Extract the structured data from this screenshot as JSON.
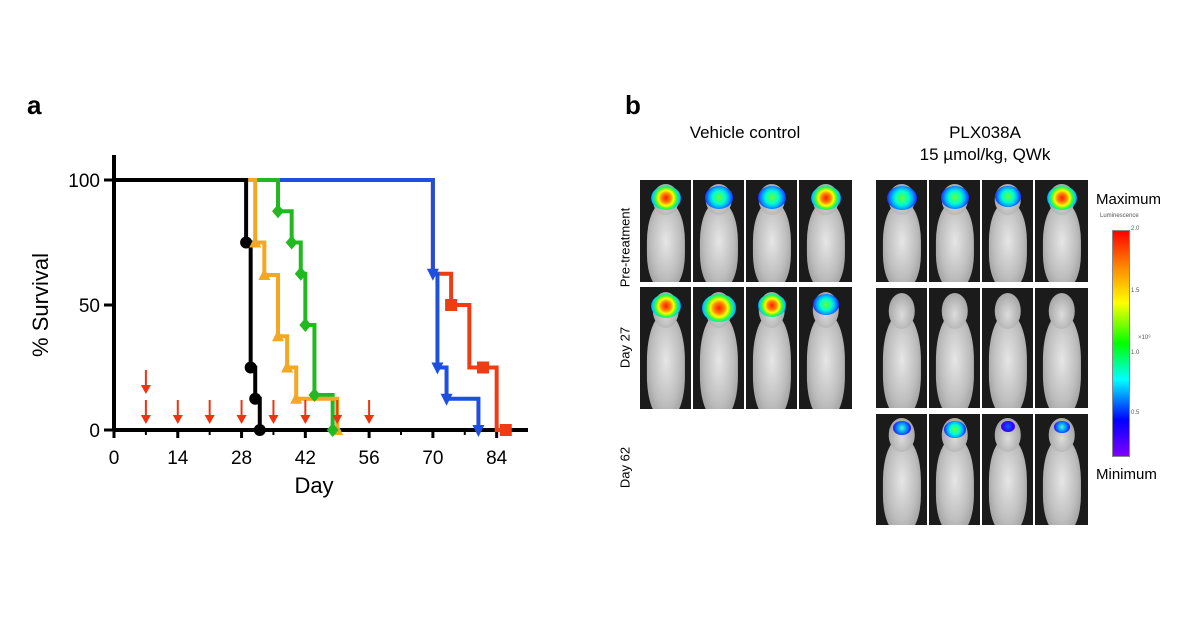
{
  "panel_a": {
    "letter": "a"
  },
  "panel_b": {
    "letter": "b",
    "groups": [
      {
        "title_line1": "Vehicle control",
        "title_line2": ""
      },
      {
        "title_line1": "PLX038A",
        "title_line2": "15 µmol/kg, QWk"
      }
    ],
    "row_labels": [
      "Pre-treatment",
      "Day 27",
      "Day 62"
    ],
    "scale": {
      "max_label": "Maximum",
      "min_label": "Minimum",
      "title": "Luminescence",
      "tick_top": "2.0",
      "tick_mid1": "1.5",
      "tick_mid2": "1.0",
      "tick_low": "0.5",
      "unit": "×10⁹"
    }
  },
  "chart_data": {
    "type": "line",
    "xlabel": "Day",
    "ylabel": "% Survival",
    "xlim": [
      0,
      90
    ],
    "ylim": [
      0,
      100
    ],
    "xticks": [
      0,
      14,
      28,
      42,
      56,
      70,
      84
    ],
    "yticks": [
      0,
      50,
      100
    ],
    "dosing_days": [
      7,
      14,
      21,
      28,
      35,
      42,
      49,
      56
    ],
    "double_arrow_day": 7,
    "series": [
      {
        "color": "#000000",
        "marker": "circle",
        "x": [
          0,
          29,
          29,
          30,
          30,
          31,
          31,
          32,
          32
        ],
        "y": [
          100,
          100,
          75,
          75,
          25,
          25,
          12.5,
          12.5,
          0
        ],
        "marker_points": [
          [
            29,
            75
          ],
          [
            30,
            25
          ],
          [
            31,
            12.5
          ],
          [
            32,
            0
          ]
        ]
      },
      {
        "color": "#f5a623",
        "marker": "triangle-up",
        "x": [
          0,
          31,
          31,
          33,
          33,
          36,
          36,
          38,
          38,
          40,
          40,
          49,
          49
        ],
        "y": [
          100,
          100,
          75,
          75,
          62,
          62,
          37.5,
          37.5,
          25,
          25,
          12.5,
          12.5,
          0
        ],
        "marker_points": [
          [
            31,
            75
          ],
          [
            33,
            62
          ],
          [
            36,
            37.5
          ],
          [
            38,
            25
          ],
          [
            40,
            12.5
          ],
          [
            49,
            0
          ]
        ]
      },
      {
        "color": "#22b822",
        "marker": "diamond",
        "x": [
          0,
          36,
          36,
          39,
          39,
          41,
          41,
          42,
          42,
          44,
          44,
          48,
          48
        ],
        "y": [
          100,
          100,
          87.5,
          87.5,
          75,
          75,
          62.5,
          62.5,
          42,
          42,
          14,
          14,
          0
        ],
        "marker_points": [
          [
            36,
            87.5
          ],
          [
            39,
            75
          ],
          [
            41,
            62.5
          ],
          [
            42,
            42
          ],
          [
            44,
            14
          ],
          [
            48,
            0
          ]
        ]
      },
      {
        "color": "#1f4fe0",
        "marker": "triangle-down",
        "x": [
          0,
          70,
          70,
          71,
          71,
          73,
          73,
          80,
          80
        ],
        "y": [
          100,
          100,
          62.5,
          62.5,
          25,
          25,
          12.5,
          12.5,
          0
        ],
        "marker_points": [
          [
            70,
            62.5
          ],
          [
            71,
            25
          ],
          [
            73,
            12.5
          ],
          [
            80,
            0
          ]
        ]
      },
      {
        "color": "#f03c14",
        "marker": "square",
        "x": [
          0,
          70,
          70,
          74,
          74,
          78,
          78,
          81,
          81,
          84,
          84,
          86,
          86
        ],
        "y": [
          100,
          100,
          62.5,
          62.5,
          50,
          50,
          25,
          25,
          25,
          25,
          0,
          0,
          0
        ],
        "marker_points": [
          [
            74,
            50
          ],
          [
            81,
            25
          ],
          [
            86,
            0
          ]
        ]
      }
    ]
  }
}
